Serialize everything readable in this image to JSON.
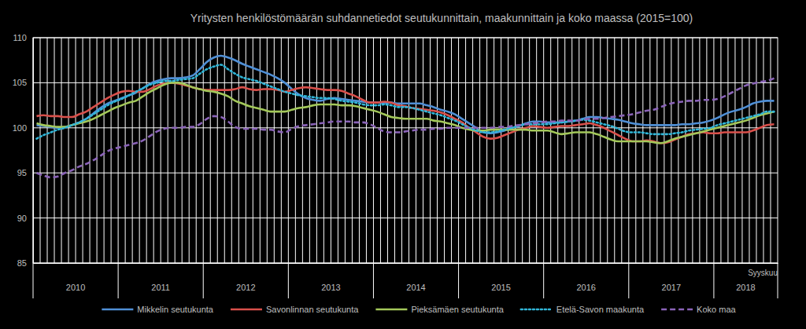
{
  "chart_data": {
    "type": "line",
    "title": "Yritysten henkilöstömäärän suhdannetiedot seutukunnittain, maakunnittain ja koko maassa (2015=100)",
    "annotations": [
      "Syyskuu"
    ],
    "categories": [
      "2010",
      null,
      null,
      null,
      null,
      null,
      null,
      null,
      null,
      null,
      null,
      null,
      "2011",
      null,
      null,
      null,
      null,
      null,
      null,
      null,
      null,
      null,
      null,
      null,
      "2012",
      null,
      null,
      null,
      null,
      null,
      null,
      null,
      null,
      null,
      null,
      null,
      "2013",
      null,
      null,
      null,
      null,
      null,
      null,
      null,
      null,
      null,
      null,
      null,
      "2014",
      null,
      null,
      null,
      null,
      null,
      null,
      null,
      null,
      null,
      null,
      null,
      "2015",
      null,
      null,
      null,
      null,
      null,
      null,
      null,
      null,
      null,
      null,
      null,
      "2016",
      null,
      null,
      null,
      null,
      null,
      null,
      null,
      null,
      null,
      null,
      null,
      "2017",
      null,
      null,
      null,
      null,
      null,
      null,
      null,
      null,
      null,
      null,
      null,
      "2018",
      null,
      null,
      null,
      null,
      null,
      null,
      null,
      null
    ],
    "ylim": [
      85,
      110
    ],
    "yticks": [
      85,
      90,
      95,
      100,
      105,
      110
    ],
    "grid": true,
    "legend": "bottom",
    "series": [
      {
        "name": "Mikkelin seutukunta",
        "color": "#4f8fd6",
        "line_style": "solid",
        "values": [
          100.3,
          100.2,
          100.1,
          100.0,
          100.1,
          100.3,
          100.6,
          101.0,
          101.6,
          102.2,
          102.7,
          103.0,
          103.3,
          103.6,
          103.9,
          104.4,
          104.9,
          105.2,
          105.4,
          105.5,
          105.5,
          105.6,
          105.8,
          106.5,
          107.3,
          107.8,
          108.0,
          107.8,
          107.5,
          107.1,
          106.8,
          106.5,
          106.2,
          105.9,
          105.5,
          105.0,
          104.3,
          103.7,
          103.3,
          103.1,
          103.0,
          103.2,
          103.3,
          103.2,
          103.1,
          103.0,
          102.9,
          102.8,
          102.8,
          102.8,
          102.8,
          102.7,
          102.7,
          102.7,
          102.7,
          102.5,
          102.3,
          102.0,
          101.8,
          101.5,
          101.0,
          100.5,
          100.0,
          99.5,
          99.4,
          99.5,
          99.7,
          100.0,
          100.2,
          100.5,
          100.7,
          100.7,
          100.6,
          100.6,
          100.6,
          100.7,
          100.8,
          101.0,
          101.2,
          101.2,
          101.1,
          101.0,
          100.9,
          100.7,
          100.5,
          100.4,
          100.3,
          100.3,
          100.3,
          100.3,
          100.3,
          100.4,
          100.4,
          100.5,
          100.6,
          100.8,
          101.1,
          101.5,
          101.8,
          102.0,
          102.3,
          102.7,
          102.9,
          103.0,
          103.0
        ]
      },
      {
        "name": "Savonlinnan seutukunta",
        "color": "#d9504b",
        "line_style": "solid",
        "values": [
          101.3,
          101.4,
          101.3,
          101.3,
          101.2,
          101.2,
          101.5,
          101.8,
          102.3,
          102.8,
          103.3,
          103.7,
          104.0,
          104.1,
          104.0,
          104.0,
          104.3,
          104.7,
          104.9,
          105.0,
          104.9,
          104.7,
          104.5,
          104.3,
          104.2,
          104.2,
          104.2,
          104.2,
          104.3,
          104.5,
          104.3,
          104.2,
          104.3,
          104.3,
          104.2,
          104.0,
          104.2,
          104.4,
          104.5,
          104.4,
          104.3,
          104.2,
          104.2,
          104.1,
          103.8,
          103.5,
          103.1,
          102.8,
          102.8,
          102.9,
          102.8,
          102.5,
          102.4,
          102.2,
          102.1,
          102.0,
          101.9,
          101.7,
          101.4,
          101.0,
          100.6,
          100.0,
          99.5,
          99.0,
          98.8,
          98.9,
          99.2,
          99.5,
          99.8,
          100.0,
          100.2,
          100.1,
          100.0,
          100.1,
          100.2,
          100.2,
          100.3,
          100.4,
          100.5,
          100.3,
          100.0,
          99.6,
          99.2,
          98.8,
          98.5,
          98.5,
          98.6,
          98.5,
          98.3,
          98.4,
          98.7,
          99.0,
          99.3,
          99.4,
          99.5,
          99.4,
          99.4,
          99.5,
          99.5,
          99.5,
          99.5,
          99.7,
          100.0,
          100.3,
          100.4
        ]
      },
      {
        "name": "Pieksämäen seutukunta",
        "color": "#a3c85a",
        "line_style": "solid",
        "values": [
          100.5,
          100.3,
          100.2,
          100.1,
          100.1,
          100.3,
          100.5,
          100.7,
          101.0,
          101.4,
          101.8,
          102.2,
          102.5,
          102.8,
          103.0,
          103.5,
          104.0,
          104.4,
          104.8,
          105.0,
          105.0,
          104.8,
          104.5,
          104.3,
          104.1,
          104.0,
          103.8,
          103.5,
          103.0,
          102.7,
          102.4,
          102.2,
          102.0,
          101.8,
          101.8,
          101.8,
          102.0,
          102.2,
          102.3,
          102.5,
          102.6,
          102.6,
          102.6,
          102.5,
          102.5,
          102.4,
          102.2,
          102.0,
          101.8,
          101.5,
          101.2,
          101.1,
          101.0,
          101.0,
          101.0,
          101.0,
          100.8,
          100.7,
          100.5,
          100.3,
          100.0,
          99.8,
          99.7,
          99.7,
          99.8,
          99.8,
          99.8,
          99.8,
          99.8,
          99.8,
          99.7,
          99.7,
          99.7,
          99.5,
          99.3,
          99.4,
          99.5,
          99.5,
          99.5,
          99.3,
          99.0,
          98.7,
          98.5,
          98.5,
          98.5,
          98.5,
          98.5,
          98.4,
          98.3,
          98.5,
          98.8,
          99.0,
          99.2,
          99.4,
          99.6,
          99.8,
          100.0,
          100.2,
          100.4,
          100.6,
          100.8,
          101.1,
          101.4,
          101.6,
          101.8
        ]
      },
      {
        "name": "Etelä-Savon maakunta",
        "color": "#31b6d8",
        "line_style": "dotted",
        "values": [
          98.8,
          99.2,
          99.5,
          99.8,
          100.0,
          100.3,
          100.6,
          101.0,
          101.5,
          102.0,
          102.5,
          102.9,
          103.2,
          103.6,
          104.0,
          104.4,
          104.8,
          105.0,
          105.2,
          105.2,
          105.3,
          105.4,
          105.5,
          106.0,
          106.5,
          106.8,
          107.0,
          106.5,
          106.0,
          105.6,
          105.4,
          105.2,
          104.9,
          104.6,
          104.3,
          104.0,
          103.8,
          103.6,
          103.5,
          103.4,
          103.3,
          103.3,
          103.2,
          103.0,
          102.9,
          102.8,
          102.6,
          102.5,
          102.5,
          102.6,
          102.5,
          102.3,
          102.3,
          102.2,
          102.0,
          101.8,
          101.6,
          101.4,
          101.1,
          100.8,
          100.4,
          100.0,
          99.7,
          99.5,
          99.5,
          99.6,
          99.8,
          100.0,
          100.2,
          100.4,
          100.4,
          100.4,
          100.4,
          100.5,
          100.6,
          100.7,
          100.8,
          100.9,
          100.8,
          100.6,
          100.4,
          100.2,
          99.9,
          99.6,
          99.5,
          99.5,
          99.4,
          99.3,
          99.3,
          99.3,
          99.4,
          99.5,
          99.7,
          99.8,
          99.9,
          100.0,
          100.3,
          100.5,
          100.7,
          100.9,
          101.1,
          101.3,
          101.5,
          101.8,
          101.8
        ]
      },
      {
        "name": "Koko maa",
        "color": "#8a63b8",
        "line_style": "dashed",
        "values": [
          95.0,
          94.7,
          94.5,
          94.6,
          95.0,
          95.3,
          95.7,
          96.0,
          96.4,
          96.9,
          97.4,
          97.7,
          97.9,
          98.1,
          98.3,
          98.6,
          99.1,
          99.6,
          99.9,
          100.0,
          100.0,
          100.1,
          100.1,
          100.4,
          101.0,
          101.3,
          101.2,
          100.7,
          100.1,
          99.9,
          99.9,
          99.9,
          99.8,
          99.8,
          99.6,
          99.5,
          99.9,
          100.2,
          100.3,
          100.4,
          100.5,
          100.6,
          100.7,
          100.7,
          100.7,
          100.6,
          100.6,
          100.4,
          100.0,
          99.6,
          99.5,
          99.5,
          99.6,
          99.7,
          99.8,
          99.8,
          99.9,
          99.9,
          100.0,
          100.0,
          100.0,
          100.0,
          100.0,
          100.0,
          100.0,
          100.1,
          100.1,
          100.2,
          100.3,
          100.4,
          100.5,
          100.6,
          100.7,
          100.7,
          100.8,
          100.8,
          100.8,
          100.9,
          101.0,
          101.0,
          101.1,
          101.2,
          101.3,
          101.4,
          101.5,
          101.7,
          101.9,
          102.0,
          102.3,
          102.6,
          102.8,
          102.9,
          103.0,
          103.0,
          103.1,
          103.1,
          103.2,
          103.5,
          103.9,
          104.3,
          104.7,
          104.9,
          105.1,
          105.2,
          105.5
        ]
      }
    ]
  }
}
